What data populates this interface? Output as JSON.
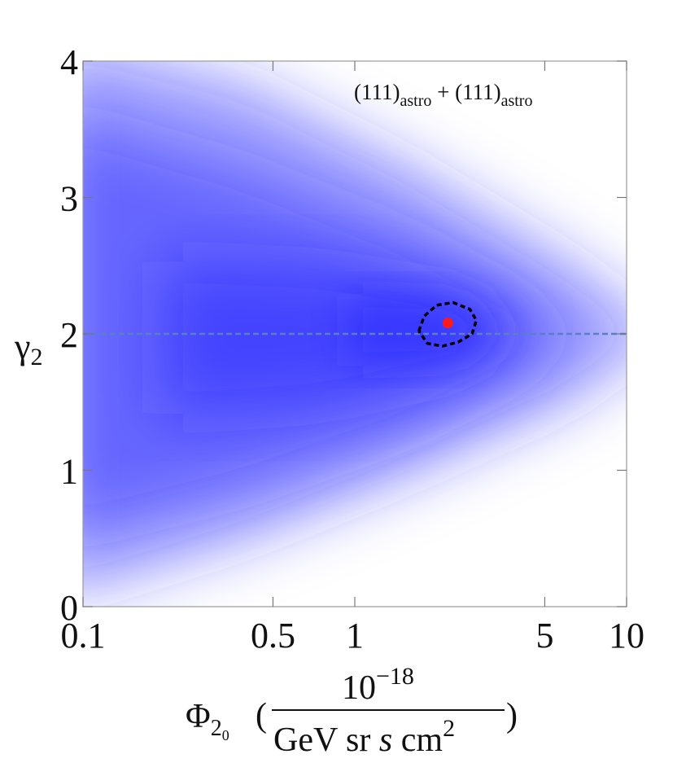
{
  "chart_data": {
    "type": "density",
    "annotation": {
      "parts": [
        "(111)",
        "astro",
        " + (111)",
        "astro"
      ]
    },
    "x_label": {
      "symbol": "Φ",
      "subscript": "2",
      "subsubscript": "0",
      "open": "(",
      "numerator": "10",
      "numerator_exponent": "−18",
      "denominator": "GeV sr ",
      "denominator_italic": "s",
      "denominator_tail": " cm",
      "denominator_exponent": "2",
      "close": ")"
    },
    "y_label": {
      "symbol": "γ",
      "subscript": "2"
    },
    "xscale": "log",
    "xlim": [
      0.1,
      10
    ],
    "xticks": [
      0.1,
      0.5,
      1,
      5,
      10
    ],
    "ylim": [
      0,
      4
    ],
    "yticks": [
      0,
      1,
      2,
      3,
      4
    ],
    "color": "#2020ff",
    "best_fit": {
      "x": 2.2,
      "y": 2.08,
      "color": "#ff1a1a"
    },
    "reference_line": {
      "y": 2,
      "color": "#5b7fbf"
    },
    "contour": {
      "x": [
        1.72,
        1.8,
        2.0,
        2.3,
        2.65,
        2.8,
        2.7,
        2.4,
        2.1,
        1.85,
        1.72
      ],
      "y": [
        2.02,
        2.13,
        2.21,
        2.23,
        2.18,
        2.1,
        2.0,
        1.94,
        1.91,
        1.93,
        2.02
      ],
      "color": "#000000"
    }
  }
}
